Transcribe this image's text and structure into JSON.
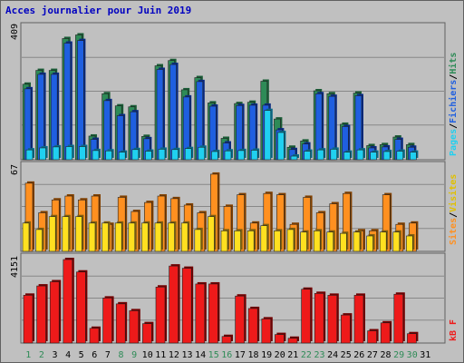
{
  "colors": {
    "background": "#c0c0c0",
    "frame_dark": "#606060",
    "frame_light": "#ffffff",
    "grid": "#888888",
    "title": "#0000c0",
    "hits_front": "#2e8b57",
    "hits_back": "#1a5c36",
    "files_front": "#1f5fe0",
    "files_back": "#0a2a80",
    "pages_front": "#20d0f0",
    "pages_back": "#0a6a88",
    "visits_front": "#ff9020",
    "visits_back": "#804000",
    "sites_front": "#ffe020",
    "sites_back": "#806010",
    "kb_front": "#ee1a1a",
    "kb_back": "#700000",
    "weekday_label": "#000000",
    "weekend_label": "#2e8b57"
  },
  "chart_data": [
    {
      "type": "bar",
      "title": "Acces journalier pour Juin 2019",
      "ymax_label": "409",
      "ylim": [
        0,
        409
      ],
      "legend": [
        "Pages",
        "Fichiers",
        "Hits"
      ],
      "legend_separator": "/",
      "categories": [
        "1",
        "2",
        "3",
        "4",
        "5",
        "6",
        "7",
        "8",
        "9",
        "10",
        "11",
        "12",
        "13",
        "14",
        "15",
        "16",
        "17",
        "18",
        "19",
        "20",
        "21",
        "22",
        "23",
        "24",
        "25",
        "26",
        "27",
        "28",
        "29",
        "30",
        "31"
      ],
      "weekend": [
        1,
        2,
        8,
        9,
        15,
        16,
        22,
        23,
        29,
        30
      ],
      "series": [
        {
          "name": "Hits",
          "values": [
            230,
            272,
            272,
            369,
            380,
            72,
            201,
            164,
            161,
            71,
            286,
            302,
            213,
            250,
            173,
            65,
            171,
            175,
            239,
            124,
            38,
            57,
            210,
            201,
            108,
            203,
            43,
            46,
            69,
            46,
            0
          ]
        },
        {
          "name": "Fichiers",
          "values": [
            216,
            260,
            260,
            355,
            363,
            62,
            180,
            134,
            146,
            64,
            275,
            290,
            191,
            238,
            163,
            51,
            165,
            166,
            166,
            91,
            31,
            48,
            201,
            193,
            101,
            195,
            36,
            39,
            62,
            38,
            0
          ]
        },
        {
          "name": "Pages",
          "values": [
            30,
            36,
            39,
            40,
            40,
            28,
            27,
            23,
            31,
            26,
            32,
            31,
            34,
            38,
            25,
            27,
            28,
            29,
            150,
            83,
            11,
            26,
            30,
            32,
            23,
            30,
            23,
            25,
            26,
            23,
            0
          ]
        }
      ]
    },
    {
      "type": "bar",
      "ymax_label": "67",
      "ylim": [
        0,
        67
      ],
      "legend": [
        "Sites",
        "Visites"
      ],
      "legend_separator": "/",
      "categories": [
        "1",
        "2",
        "3",
        "4",
        "5",
        "6",
        "7",
        "8",
        "9",
        "10",
        "11",
        "12",
        "13",
        "14",
        "15",
        "16",
        "17",
        "18",
        "19",
        "20",
        "21",
        "22",
        "23",
        "24",
        "25",
        "26",
        "27",
        "28",
        "29",
        "30",
        "31"
      ],
      "series": [
        {
          "name": "Visites",
          "values": [
            53,
            30,
            40,
            43,
            40,
            43,
            21,
            42,
            31,
            38,
            43,
            41,
            36,
            30,
            60,
            35,
            44,
            22,
            45,
            44,
            21,
            42,
            30,
            37,
            45,
            16,
            16,
            44,
            21,
            22,
            0
          ]
        },
        {
          "name": "Sites",
          "values": [
            22,
            17,
            27,
            27,
            27,
            22,
            22,
            22,
            22,
            22,
            22,
            22,
            22,
            17,
            27,
            16,
            16,
            16,
            20,
            16,
            17,
            15,
            16,
            15,
            14,
            15,
            12,
            15,
            15,
            12,
            0
          ]
        }
      ]
    },
    {
      "type": "bar",
      "ymax_label": "4151",
      "ylim": [
        0,
        4151
      ],
      "legend": [
        "kB F"
      ],
      "categories": [
        "1",
        "2",
        "3",
        "4",
        "5",
        "6",
        "7",
        "8",
        "9",
        "10",
        "11",
        "12",
        "13",
        "14",
        "15",
        "16",
        "17",
        "18",
        "19",
        "20",
        "21",
        "22",
        "23",
        "24",
        "25",
        "26",
        "27",
        "28",
        "29",
        "30",
        "31"
      ],
      "series": [
        {
          "name": "kB F",
          "values": [
            2302,
            2749,
            2950,
            4020,
            3421,
            710,
            2168,
            1886,
            1556,
            933,
            2697,
            3709,
            3600,
            2843,
            2843,
            318,
            2263,
            1663,
            1163,
            411,
            230,
            2590,
            2390,
            2300,
            1350,
            2300,
            588,
            971,
            2350,
            450,
            0
          ]
        }
      ]
    }
  ]
}
